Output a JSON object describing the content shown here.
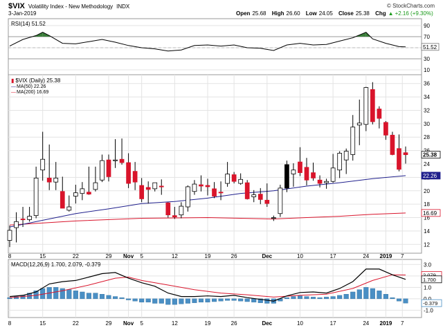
{
  "header": {
    "symbol": "$VIX",
    "name": "Volatility Index - New Methodology",
    "exchange": "INDX",
    "watermark": "© StockCharts.com",
    "date": "3-Jan-2019",
    "open_label": "Open",
    "open": "25.68",
    "high_label": "High",
    "high": "26.60",
    "low_label": "Low",
    "low": "24.05",
    "close_label": "Close",
    "close": "25.38",
    "chg_label": "Chg",
    "chg": "+2.16 (+9.30%)",
    "chg_arrow": "▲"
  },
  "rsi_panel": {
    "legend": "RSI(14) 51.52",
    "current_label": "51.52",
    "levels": [
      70,
      30
    ],
    "ticks": [
      90,
      70,
      50,
      30,
      10
    ],
    "line_color": "#000000",
    "overbought_fill": "#3a7d3a"
  },
  "price_panel": {
    "legend_main": "$VIX (Daily) 25.38",
    "legend_ma50": "MA(50) 22.26",
    "legend_ma200": "MA(200) 16.69",
    "ticks": [
      36,
      34,
      32,
      30,
      28,
      26,
      24,
      22,
      20,
      18,
      16,
      14,
      12
    ],
    "axis_labels": [
      {
        "text": "25.38",
        "value": 25.38,
        "style": "close"
      },
      {
        "text": "22.26",
        "value": 22.26,
        "style": "ma50"
      },
      {
        "text": "16.69",
        "value": 16.69,
        "style": "ma200"
      }
    ],
    "up_color": "#ffffff",
    "down_color": "#d9142b",
    "black_up_color": "#000000",
    "ma50_color": "#1f1f8c",
    "ma200_color": "#d9142b"
  },
  "macd_panel": {
    "legend": "MACD(12,26,9) 1.700, 2.079, -0.379",
    "ticks": [
      3.0,
      2.0,
      1.0,
      0.0,
      -1.0
    ],
    "axis_labels": [
      {
        "text": "2.079",
        "value": 2.079,
        "style": "signal"
      },
      {
        "text": "1.700",
        "value": 1.7,
        "style": "macd"
      },
      {
        "text": "-0.379",
        "value": -0.379,
        "style": "hist"
      }
    ],
    "macd_color": "#000000",
    "signal_color": "#d9142b",
    "hist_color": "#4a8fc4"
  },
  "x_axis": {
    "labels": [
      {
        "text": "8",
        "day": 0
      },
      {
        "text": "15",
        "day": 5
      },
      {
        "text": "22",
        "day": 10
      },
      {
        "text": "29",
        "day": 15
      },
      {
        "text": "Nov",
        "day": 18,
        "bold": true
      },
      {
        "text": "5",
        "day": 20
      },
      {
        "text": "12",
        "day": 25
      },
      {
        "text": "19",
        "day": 30
      },
      {
        "text": "26",
        "day": 34
      },
      {
        "text": "Dec",
        "day": 39,
        "bold": true
      },
      {
        "text": "10",
        "day": 44
      },
      {
        "text": "17",
        "day": 49
      },
      {
        "text": "24",
        "day": 54
      },
      {
        "text": "2019",
        "day": 57,
        "bold": true
      },
      {
        "text": "7",
        "day": 59.5
      }
    ]
  },
  "chart_data": {
    "type": "candlestick",
    "title": "$VIX Volatility Index - New Methodology INDX",
    "ylim": [
      11,
      37
    ],
    "candles": [
      {
        "o": 12.6,
        "h": 14.8,
        "l": 11.6,
        "c": 14.1,
        "d": 0
      },
      {
        "o": 14.5,
        "h": 16.8,
        "l": 12.3,
        "c": 15.4,
        "d": 1
      },
      {
        "o": 15.8,
        "h": 17.6,
        "l": 14.6,
        "c": 15.7,
        "d": 2
      },
      {
        "o": 15.7,
        "h": 17.6,
        "l": 15.4,
        "c": 16.2,
        "d": 3
      },
      {
        "o": 16.3,
        "h": 23.6,
        "l": 15.9,
        "c": 21.9,
        "d": 4
      },
      {
        "o": 23.1,
        "h": 28.8,
        "l": 21.5,
        "c": 24.7,
        "d": 5
      },
      {
        "o": 21.9,
        "h": 26.9,
        "l": 20.1,
        "c": 21.3,
        "d": 6
      },
      {
        "o": 21.3,
        "h": 24.3,
        "l": 20.1,
        "c": 21.9,
        "d": 7
      },
      {
        "o": 19.9,
        "h": 22.1,
        "l": 17.4,
        "c": 17.4,
        "d": 8
      },
      {
        "o": 17.1,
        "h": 19.3,
        "l": 16.9,
        "c": 17.6,
        "d": 9
      },
      {
        "o": 19.2,
        "h": 20.9,
        "l": 18.1,
        "c": 19.7,
        "d": 10
      },
      {
        "o": 19.6,
        "h": 21.3,
        "l": 18.6,
        "c": 20.3,
        "d": 11
      },
      {
        "o": 19.8,
        "h": 23.6,
        "l": 19.4,
        "c": 19.5,
        "d": 12
      },
      {
        "o": 20.2,
        "h": 23.6,
        "l": 19.9,
        "c": 21.2,
        "d": 13
      },
      {
        "o": 21.6,
        "h": 25.4,
        "l": 21.3,
        "c": 24.5,
        "d": 14
      },
      {
        "o": 24.6,
        "h": 25.4,
        "l": 21.4,
        "c": 22.1,
        "d": 15
      },
      {
        "o": 24.5,
        "h": 27.7,
        "l": 23.4,
        "c": 24.6,
        "d": 16
      },
      {
        "o": 24.7,
        "h": 27.8,
        "l": 23.9,
        "c": 24.2,
        "d": 17
      },
      {
        "o": 24.2,
        "h": 25.6,
        "l": 20.4,
        "c": 21.1,
        "d": 18
      },
      {
        "o": 22.9,
        "h": 24.3,
        "l": 20.1,
        "c": 21.3,
        "d": 19
      },
      {
        "o": 20.8,
        "h": 21.9,
        "l": 18.3,
        "c": 18.8,
        "d": 20
      },
      {
        "o": 20.5,
        "h": 21.4,
        "l": 18.1,
        "c": 20.2,
        "d": 21
      },
      {
        "o": 20.3,
        "h": 21.2,
        "l": 19.9,
        "c": 21.2,
        "d": 22
      },
      {
        "o": 20.7,
        "h": 21.7,
        "l": 19.4,
        "c": 20.6,
        "d": 23
      },
      {
        "o": 18.2,
        "h": 18.3,
        "l": 16.0,
        "c": 16.4,
        "d": 24
      },
      {
        "o": 16.3,
        "h": 17.6,
        "l": 15.8,
        "c": 16.1,
        "d": 25
      },
      {
        "o": 16.4,
        "h": 18.3,
        "l": 15.9,
        "c": 17.7,
        "d": 26
      },
      {
        "o": 17.6,
        "h": 20.8,
        "l": 16.9,
        "c": 20.6,
        "d": 27
      },
      {
        "o": 19.9,
        "h": 21.6,
        "l": 19.4,
        "c": 21.0,
        "d": 28
      },
      {
        "o": 20.9,
        "h": 22.3,
        "l": 19.9,
        "c": 20.7,
        "d": 29
      },
      {
        "o": 20.8,
        "h": 21.8,
        "l": 19.3,
        "c": 20.6,
        "d": 30
      },
      {
        "o": 20.3,
        "h": 21.3,
        "l": 18.9,
        "c": 19.2,
        "d": 31
      },
      {
        "o": 19.8,
        "h": 21.4,
        "l": 18.6,
        "c": 19.7,
        "d": 32
      },
      {
        "o": 21.1,
        "h": 24.3,
        "l": 20.6,
        "c": 22.5,
        "d": 33
      },
      {
        "o": 22.4,
        "h": 22.8,
        "l": 21.1,
        "c": 21.4,
        "d": 34
      },
      {
        "o": 21.1,
        "h": 22.6,
        "l": 20.9,
        "c": 21.7,
        "d": 35
      },
      {
        "o": 21.2,
        "h": 21.6,
        "l": 18.7,
        "c": 18.8,
        "d": 36
      },
      {
        "o": 19.1,
        "h": 20.1,
        "l": 18.3,
        "c": 19.4,
        "d": 37
      },
      {
        "o": 19.5,
        "h": 20.4,
        "l": 18.0,
        "c": 18.7,
        "d": 38
      },
      {
        "o": 18.6,
        "h": 21.1,
        "l": 17.6,
        "c": 18.1,
        "d": 39
      },
      {
        "o": 15.9,
        "h": 16.3,
        "l": 15.5,
        "c": 16.0,
        "d": 40
      },
      {
        "o": 16.6,
        "h": 20.9,
        "l": 16.1,
        "c": 20.4,
        "d": 41
      },
      {
        "o": 20.4,
        "h": 24.5,
        "l": 19.8,
        "c": 23.9,
        "d": 42
      },
      {
        "o": 22.5,
        "h": 24.1,
        "l": 20.6,
        "c": 23.1,
        "d": 43
      },
      {
        "o": 24.3,
        "h": 26.5,
        "l": 22.2,
        "c": 22.7,
        "d": 44
      },
      {
        "o": 23.5,
        "h": 24.9,
        "l": 20.8,
        "c": 21.6,
        "d": 45
      },
      {
        "o": 22.7,
        "h": 24.2,
        "l": 21.5,
        "c": 21.9,
        "d": 46
      },
      {
        "o": 21.6,
        "h": 22.3,
        "l": 20.5,
        "c": 21.1,
        "d": 47
      },
      {
        "o": 21.2,
        "h": 21.8,
        "l": 20.3,
        "c": 21.4,
        "d": 48
      },
      {
        "o": 21.4,
        "h": 25.5,
        "l": 21.2,
        "c": 23.4,
        "d": 49
      },
      {
        "o": 23.1,
        "h": 25.9,
        "l": 21.9,
        "c": 25.6,
        "d": 50
      },
      {
        "o": 24.6,
        "h": 26.3,
        "l": 22.5,
        "c": 25.9,
        "d": 51
      },
      {
        "o": 25.4,
        "h": 31.3,
        "l": 24.5,
        "c": 29.5,
        "d": 52
      },
      {
        "o": 29.8,
        "h": 33.6,
        "l": 26.8,
        "c": 30.1,
        "d": 53
      },
      {
        "o": 29.9,
        "h": 35.5,
        "l": 28.9,
        "c": 35.4,
        "d": 54
      },
      {
        "o": 35.1,
        "h": 36.2,
        "l": 29.9,
        "c": 30.3,
        "d": 55
      },
      {
        "o": 32.2,
        "h": 32.6,
        "l": 29.3,
        "c": 30.8,
        "d": 56
      },
      {
        "o": 30.2,
        "h": 30.4,
        "l": 27.6,
        "c": 28.3,
        "d": 57
      },
      {
        "o": 28.3,
        "h": 28.8,
        "l": 25.3,
        "c": 25.4,
        "d": 58
      },
      {
        "o": 26.3,
        "h": 28.4,
        "l": 22.9,
        "c": 23.2,
        "d": 59
      },
      {
        "o": 25.68,
        "h": 26.6,
        "l": 24.05,
        "c": 25.38,
        "d": 60
      }
    ],
    "ma50": [
      [
        0,
        14.6
      ],
      [
        5,
        15.6
      ],
      [
        10,
        16.6
      ],
      [
        15,
        17.3
      ],
      [
        20,
        18.1
      ],
      [
        25,
        18.4
      ],
      [
        30,
        18.9
      ],
      [
        35,
        19.6
      ],
      [
        40,
        20.0
      ],
      [
        45,
        20.7
      ],
      [
        50,
        21.2
      ],
      [
        55,
        21.8
      ],
      [
        60,
        22.26
      ]
    ],
    "ma200": [
      [
        0,
        14.9
      ],
      [
        10,
        15.5
      ],
      [
        20,
        15.9
      ],
      [
        30,
        16.0
      ],
      [
        35,
        15.9
      ],
      [
        40,
        15.8
      ],
      [
        45,
        16.0
      ],
      [
        50,
        16.2
      ],
      [
        55,
        16.5
      ],
      [
        60,
        16.69
      ]
    ],
    "rsi": [
      [
        0,
        53
      ],
      [
        2,
        65
      ],
      [
        4,
        72
      ],
      [
        5,
        78
      ],
      [
        6,
        72
      ],
      [
        8,
        58
      ],
      [
        10,
        57
      ],
      [
        12,
        61
      ],
      [
        14,
        65
      ],
      [
        16,
        60
      ],
      [
        18,
        54
      ],
      [
        20,
        50
      ],
      [
        22,
        48
      ],
      [
        24,
        44
      ],
      [
        26,
        46
      ],
      [
        28,
        54
      ],
      [
        30,
        55
      ],
      [
        32,
        53
      ],
      [
        34,
        55
      ],
      [
        36,
        50
      ],
      [
        38,
        49
      ],
      [
        40,
        45
      ],
      [
        42,
        55
      ],
      [
        44,
        58
      ],
      [
        46,
        55
      ],
      [
        48,
        56
      ],
      [
        50,
        62
      ],
      [
        52,
        68
      ],
      [
        54,
        78
      ],
      [
        55,
        66
      ],
      [
        57,
        58
      ],
      [
        59,
        52
      ],
      [
        60,
        51.52
      ]
    ],
    "macd": [
      [
        0,
        0.2
      ],
      [
        2,
        0.3
      ],
      [
        4,
        0.6
      ],
      [
        6,
        1.3
      ],
      [
        8,
        1.5
      ],
      [
        10,
        1.6
      ],
      [
        12,
        1.9
      ],
      [
        14,
        2.2
      ],
      [
        16,
        2.3
      ],
      [
        18,
        1.8
      ],
      [
        20,
        1.4
      ],
      [
        22,
        1.1
      ],
      [
        24,
        0.5
      ],
      [
        26,
        0.2
      ],
      [
        28,
        0.2
      ],
      [
        30,
        0.25
      ],
      [
        32,
        0.2
      ],
      [
        34,
        0.3
      ],
      [
        36,
        0.1
      ],
      [
        38,
        -0.05
      ],
      [
        40,
        -0.2
      ],
      [
        42,
        0.25
      ],
      [
        44,
        0.55
      ],
      [
        46,
        0.6
      ],
      [
        48,
        0.5
      ],
      [
        50,
        0.9
      ],
      [
        52,
        1.5
      ],
      [
        54,
        2.6
      ],
      [
        56,
        2.6
      ],
      [
        58,
        2.1
      ],
      [
        60,
        1.7
      ]
    ],
    "signal": [
      [
        0,
        0.1
      ],
      [
        4,
        0.3
      ],
      [
        8,
        0.7
      ],
      [
        12,
        1.2
      ],
      [
        16,
        1.8
      ],
      [
        18,
        1.9
      ],
      [
        20,
        1.6
      ],
      [
        24,
        1.2
      ],
      [
        28,
        0.8
      ],
      [
        32,
        0.5
      ],
      [
        36,
        0.35
      ],
      [
        40,
        0.15
      ],
      [
        44,
        0.3
      ],
      [
        48,
        0.4
      ],
      [
        52,
        0.9
      ],
      [
        55,
        1.6
      ],
      [
        58,
        2.1
      ],
      [
        60,
        2.079
      ]
    ],
    "hist": [
      0.1,
      0.2,
      0.3,
      0.5,
      0.7,
      0.9,
      1.0,
      1.0,
      0.9,
      0.8,
      0.7,
      0.6,
      0.5,
      0.5,
      0.4,
      0.3,
      0.2,
      0.1,
      -0.1,
      -0.2,
      -0.3,
      -0.3,
      -0.4,
      -0.4,
      -0.5,
      -0.5,
      -0.45,
      -0.4,
      -0.35,
      -0.3,
      -0.3,
      -0.25,
      -0.2,
      -0.15,
      -0.15,
      -0.2,
      -0.25,
      -0.3,
      -0.35,
      -0.4,
      -0.4,
      -0.2,
      0.1,
      0.2,
      0.25,
      0.2,
      0.15,
      0.1,
      0.15,
      0.2,
      0.3,
      0.4,
      0.6,
      0.8,
      1.0,
      0.9,
      0.7,
      0.4,
      0.1,
      -0.2,
      -0.379
    ]
  }
}
